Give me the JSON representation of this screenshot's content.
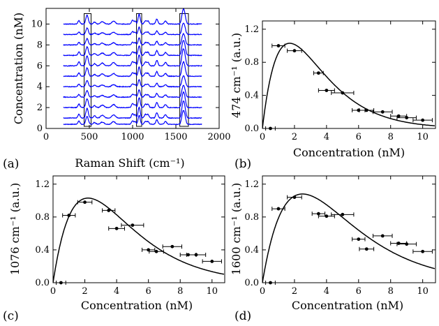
{
  "chart_data": [
    {
      "panel": "(a)",
      "type": "line",
      "xlabel": "Raman Shift (cm⁻¹)",
      "ylabel": "Concentration (nM)",
      "xlim": [
        0,
        2000
      ],
      "ylim": [
        0,
        11.5
      ],
      "xticks": [
        0,
        500,
        1000,
        1500,
        2000
      ],
      "yticks": [
        0,
        2,
        4,
        6,
        8,
        10
      ],
      "series_color": "#0000ff",
      "spectrum_range": [
        200,
        1800
      ],
      "offsets": [
        0.4,
        1.0,
        2.0,
        3.0,
        4.0,
        5.0,
        6.0,
        7.0,
        8.0,
        9.0,
        10.0
      ],
      "peaks": [
        {
          "center": 380,
          "height": 0.35,
          "width": 12
        },
        {
          "center": 474,
          "height": 0.9,
          "width": 14
        },
        {
          "center": 560,
          "height": 0.2,
          "width": 14
        },
        {
          "center": 650,
          "height": 0.25,
          "width": 20
        },
        {
          "center": 780,
          "height": 0.3,
          "width": 20
        },
        {
          "center": 1000,
          "height": 0.4,
          "width": 12
        },
        {
          "center": 1030,
          "height": 0.3,
          "width": 10
        },
        {
          "center": 1076,
          "height": 1.0,
          "width": 12
        },
        {
          "center": 1150,
          "height": 0.35,
          "width": 14
        },
        {
          "center": 1180,
          "height": 0.3,
          "width": 10
        },
        {
          "center": 1280,
          "height": 0.5,
          "width": 12
        },
        {
          "center": 1380,
          "height": 0.3,
          "width": 14
        },
        {
          "center": 1580,
          "height": 1.1,
          "width": 14
        },
        {
          "center": 1600,
          "height": 0.9,
          "width": 14
        }
      ],
      "highlight_boxes": [
        [
          440,
          520
        ],
        [
          1045,
          1105
        ],
        [
          1545,
          1645
        ]
      ]
    },
    {
      "panel": "(b)",
      "type": "scatter",
      "xlabel": "Concentration (nM)",
      "ylabel": "474 cm⁻¹ (a.u.)",
      "xlim": [
        0,
        10.8
      ],
      "ylim": [
        0,
        1.3
      ],
      "xticks": [
        0,
        2,
        4,
        6,
        8,
        10
      ],
      "yticks": [
        0.0,
        0.4,
        0.8,
        1.2
      ],
      "ytick_labels": [
        "0.0",
        "0.4",
        "0.8",
        "1.2"
      ],
      "points": [
        {
          "x": 0.5,
          "y": 0.0,
          "xerr": 0.3
        },
        {
          "x": 1.0,
          "y": 1.0,
          "xerr": 0.4
        },
        {
          "x": 2.0,
          "y": 0.94,
          "xerr": 0.45
        },
        {
          "x": 3.5,
          "y": 0.67,
          "xerr": 0.3
        },
        {
          "x": 4.0,
          "y": 0.46,
          "xerr": 0.5
        },
        {
          "x": 5.0,
          "y": 0.43,
          "xerr": 0.7
        },
        {
          "x": 6.0,
          "y": 0.22,
          "xerr": 0.4
        },
        {
          "x": 6.5,
          "y": 0.22,
          "xerr": 0.45
        },
        {
          "x": 7.5,
          "y": 0.2,
          "xerr": 0.6
        },
        {
          "x": 8.5,
          "y": 0.15,
          "xerr": 0.5
        },
        {
          "x": 9.0,
          "y": 0.13,
          "xerr": 0.6
        },
        {
          "x": 10.0,
          "y": 0.1,
          "xerr": 0.6
        }
      ],
      "fit": {
        "peak_x": 1.7,
        "peak_y": 1.03
      }
    },
    {
      "panel": "(c)",
      "type": "scatter",
      "xlabel": "Concentration (nM)",
      "ylabel": "1076 cm⁻¹ (a.u.)",
      "xlim": [
        0,
        10.8
      ],
      "ylim": [
        0,
        1.3
      ],
      "xticks": [
        0,
        2,
        4,
        6,
        8,
        10
      ],
      "yticks": [
        0.0,
        0.4,
        0.8,
        1.2
      ],
      "ytick_labels": [
        "0.0",
        "0.4",
        "0.8",
        "1.2"
      ],
      "points": [
        {
          "x": 0.5,
          "y": 0.0,
          "xerr": 0.3
        },
        {
          "x": 1.0,
          "y": 0.82,
          "xerr": 0.4
        },
        {
          "x": 2.0,
          "y": 0.98,
          "xerr": 0.45
        },
        {
          "x": 3.5,
          "y": 0.88,
          "xerr": 0.4
        },
        {
          "x": 4.0,
          "y": 0.66,
          "xerr": 0.5
        },
        {
          "x": 5.0,
          "y": 0.7,
          "xerr": 0.7
        },
        {
          "x": 6.0,
          "y": 0.4,
          "xerr": 0.4
        },
        {
          "x": 6.5,
          "y": 0.38,
          "xerr": 0.45
        },
        {
          "x": 7.5,
          "y": 0.44,
          "xerr": 0.6
        },
        {
          "x": 8.5,
          "y": 0.34,
          "xerr": 0.5
        },
        {
          "x": 9.0,
          "y": 0.34,
          "xerr": 0.6
        },
        {
          "x": 10.0,
          "y": 0.26,
          "xerr": 0.6
        }
      ],
      "fit": {
        "peak_x": 2.2,
        "peak_y": 1.03
      }
    },
    {
      "panel": "(d)",
      "type": "scatter",
      "xlabel": "Concentration (nM)",
      "ylabel": "1600 cm⁻¹ (a.u.)",
      "xlim": [
        0,
        10.8
      ],
      "ylim": [
        0,
        1.3
      ],
      "xticks": [
        0,
        2,
        4,
        6,
        8,
        10
      ],
      "yticks": [
        0.0,
        0.4,
        0.8,
        1.2
      ],
      "ytick_labels": [
        "0.0",
        "0.4",
        "0.8",
        "1.2"
      ],
      "points": [
        {
          "x": 0.5,
          "y": 0.0,
          "xerr": 0.3
        },
        {
          "x": 1.0,
          "y": 0.9,
          "xerr": 0.4
        },
        {
          "x": 2.0,
          "y": 1.04,
          "xerr": 0.45
        },
        {
          "x": 3.5,
          "y": 0.84,
          "xerr": 0.4
        },
        {
          "x": 4.0,
          "y": 0.81,
          "xerr": 0.5
        },
        {
          "x": 5.0,
          "y": 0.83,
          "xerr": 0.7
        },
        {
          "x": 6.0,
          "y": 0.53,
          "xerr": 0.4
        },
        {
          "x": 6.5,
          "y": 0.41,
          "xerr": 0.45
        },
        {
          "x": 7.5,
          "y": 0.57,
          "xerr": 0.6
        },
        {
          "x": 8.5,
          "y": 0.48,
          "xerr": 0.5
        },
        {
          "x": 9.0,
          "y": 0.47,
          "xerr": 0.6
        },
        {
          "x": 10.0,
          "y": 0.38,
          "xerr": 0.6
        }
      ],
      "fit": {
        "peak_x": 2.5,
        "peak_y": 1.08
      }
    }
  ]
}
